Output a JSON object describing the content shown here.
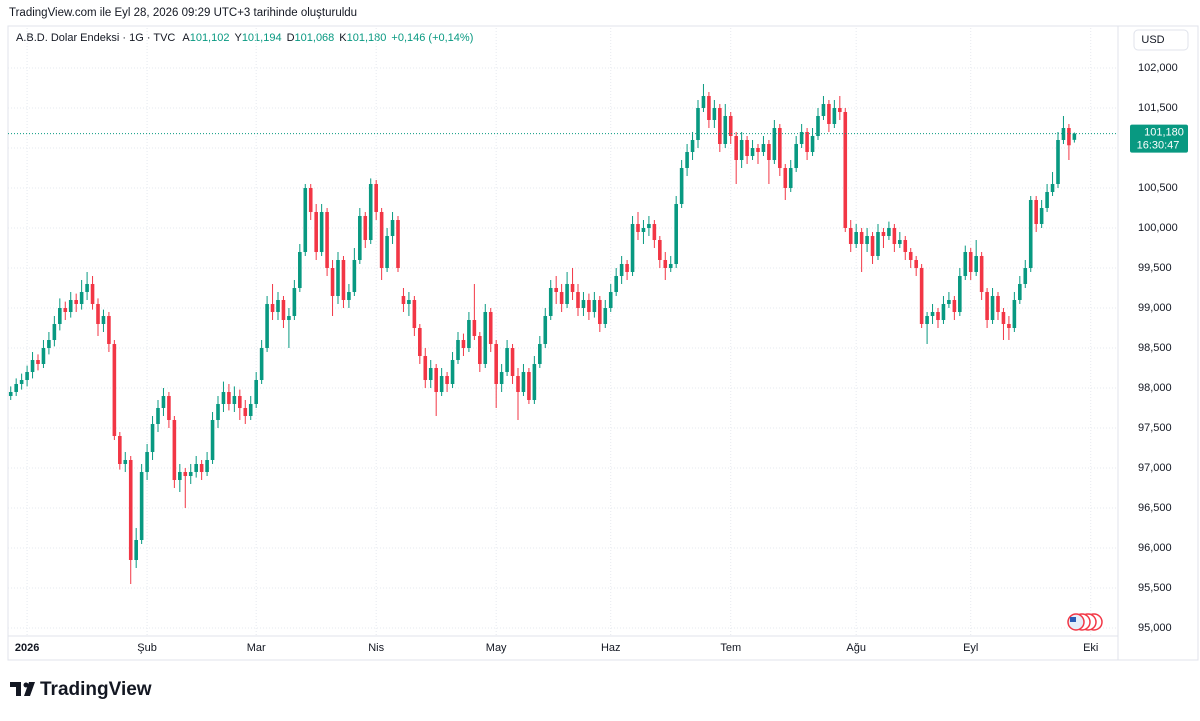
{
  "page": {
    "caption": "TradingView.com ile Eyl 28, 2026 09:29 UTC+3 tarihinde oluşturuldu",
    "logo": "TradingView"
  },
  "chart_data": {
    "type": "candlestick",
    "symbol": "A.B.D. Dolar Endeksi · 1G · TVC",
    "ohlc_labels": [
      {
        "key": "A",
        "value": "101,102"
      },
      {
        "key": "Y",
        "value": "101,194"
      },
      {
        "key": "D",
        "value": "101,068"
      },
      {
        "key": "K",
        "value": "101,180"
      }
    ],
    "change_label": "+0,146 (+0,14%)",
    "currency": "USD",
    "last_label": {
      "price": "101,180",
      "countdown": "16:30:47"
    },
    "up_color": "#089981",
    "down_color": "#f23645",
    "grid": true,
    "xlim": [
      -0.5,
      203
    ],
    "xticks": [
      {
        "value": 3,
        "label": "2026"
      },
      {
        "value": 25,
        "label": "Şub"
      },
      {
        "value": 45,
        "label": "Mar"
      },
      {
        "value": 67,
        "label": "Nis"
      },
      {
        "value": 89,
        "label": "May"
      },
      {
        "value": 110,
        "label": "Haz"
      },
      {
        "value": 132,
        "label": "Tem"
      },
      {
        "value": 155,
        "label": "Ağu"
      },
      {
        "value": 176,
        "label": "Eyl"
      },
      {
        "value": 198,
        "label": "Eki"
      }
    ],
    "ylim": [
      94.6,
      102.5
    ],
    "yticks": [
      {
        "value": 95,
        "label": "95,000"
      },
      {
        "value": 95.5,
        "label": "95,500"
      },
      {
        "value": 96,
        "label": "96,000"
      },
      {
        "value": 96.5,
        "label": "96,500"
      },
      {
        "value": 97,
        "label": "97,000"
      },
      {
        "value": 97.5,
        "label": "97,500"
      },
      {
        "value": 98,
        "label": "98,000"
      },
      {
        "value": 98.5,
        "label": "98,500"
      },
      {
        "value": 99,
        "label": "99,000"
      },
      {
        "value": 99.5,
        "label": "99,500"
      },
      {
        "value": 100,
        "label": "100,000"
      },
      {
        "value": 100.5,
        "label": "100,500"
      },
      {
        "value": 101,
        "label": "101,000"
      },
      {
        "value": 101.5,
        "label": "101,500"
      },
      {
        "value": 102,
        "label": "102,000"
      }
    ],
    "open": [
      97.9,
      97.95,
      98.05,
      98.1,
      98.2,
      98.35,
      98.3,
      98.5,
      98.6,
      98.8,
      99.0,
      98.95,
      99.1,
      99.05,
      99.2,
      99.3,
      99.05,
      98.8,
      98.9,
      98.55,
      97.4,
      97.05,
      97.1,
      95.85,
      96.1,
      96.95,
      97.2,
      97.55,
      97.75,
      97.9,
      97.6,
      96.85,
      96.95,
      96.9,
      96.95,
      97.05,
      96.95,
      97.1,
      97.6,
      97.8,
      97.95,
      97.8,
      97.9,
      97.75,
      97.65,
      97.8,
      98.1,
      98.5,
      99.05,
      98.95,
      99.1,
      98.85,
      98.9,
      99.25,
      99.7,
      100.5,
      100.2,
      99.7,
      100.2,
      99.5,
      99.15,
      99.6,
      99.1,
      99.2,
      99.6,
      100.15,
      99.85,
      100.55,
      100.2,
      99.5,
      99.9,
      100.1,
      99.15,
      99.05,
      99.1,
      98.75,
      98.4,
      98.1,
      98.25,
      97.95,
      98.15,
      98.05,
      98.35,
      98.6,
      98.5,
      98.85,
      98.65,
      98.3,
      98.95,
      98.55,
      98.05,
      98.2,
      98.5,
      98.15,
      97.95,
      98.2,
      97.85,
      98.3,
      98.55,
      98.9,
      99.25,
      99.2,
      99.05,
      99.3,
      99.2,
      99.0,
      99.1,
      98.95,
      99.1,
      98.8,
      99.0,
      99.2,
      99.4,
      99.55,
      99.45,
      100.05,
      99.95,
      100.0,
      100.05,
      99.85,
      99.6,
      99.5,
      99.55,
      100.3,
      100.75,
      100.95,
      101.1,
      101.5,
      101.65,
      101.35,
      101.5,
      101.05,
      101.4,
      101.15,
      100.85,
      101.1,
      100.9,
      101.0,
      100.95,
      101.05,
      100.85,
      101.25,
      100.75,
      100.5,
      100.75,
      101.05,
      101.2,
      100.95,
      101.15,
      101.4,
      101.55,
      101.3,
      101.5,
      101.45,
      100.0,
      99.8,
      99.95,
      99.8,
      99.9,
      99.65,
      99.95,
      99.9,
      100.0,
      99.8,
      99.85,
      99.7,
      99.6,
      99.5,
      98.8,
      98.9,
      98.95,
      98.85,
      99.05,
      99.1,
      98.95,
      99.4,
      99.7,
      99.45,
      99.65,
      99.2,
      98.85,
      99.15,
      98.95,
      98.8,
      98.75,
      99.1,
      99.3,
      99.5,
      100.35,
      100.05,
      100.25,
      100.45,
      100.55,
      101.1,
      101.25,
      101.102
    ],
    "high": [
      98.02,
      98.12,
      98.18,
      98.28,
      98.45,
      98.42,
      98.6,
      98.7,
      98.9,
      99.12,
      99.08,
      99.2,
      99.18,
      99.35,
      99.45,
      99.4,
      99.12,
      98.98,
      98.95,
      98.6,
      97.45,
      97.2,
      97.15,
      96.25,
      97.05,
      97.3,
      97.65,
      97.85,
      98.0,
      97.95,
      97.65,
      97.05,
      97.0,
      97.05,
      97.15,
      97.1,
      97.2,
      97.7,
      97.9,
      98.08,
      98.05,
      98.02,
      97.98,
      97.85,
      97.9,
      98.2,
      98.6,
      99.15,
      99.3,
      99.2,
      99.15,
      99.0,
      99.35,
      99.8,
      100.55,
      100.55,
      100.3,
      100.3,
      100.25,
      99.6,
      99.7,
      99.65,
      99.3,
      99.75,
      100.25,
      100.2,
      100.62,
      100.6,
      100.25,
      100.0,
      100.2,
      100.15,
      99.25,
      99.2,
      99.15,
      98.8,
      98.5,
      98.35,
      98.3,
      98.25,
      98.2,
      98.45,
      98.7,
      98.68,
      98.95,
      99.3,
      98.7,
      99.05,
      99.0,
      98.6,
      98.3,
      98.6,
      98.55,
      98.25,
      98.3,
      98.25,
      98.4,
      98.65,
      99.0,
      99.35,
      99.4,
      99.3,
      99.45,
      99.5,
      99.3,
      99.2,
      99.18,
      99.2,
      99.15,
      99.1,
      99.3,
      99.5,
      99.65,
      99.6,
      100.15,
      100.2,
      100.1,
      100.15,
      100.1,
      99.9,
      99.7,
      99.65,
      100.4,
      100.85,
      101.05,
      101.2,
      101.6,
      101.8,
      101.7,
      101.6,
      101.55,
      101.55,
      101.45,
      101.2,
      101.2,
      101.15,
      101.1,
      101.05,
      101.15,
      101.1,
      101.35,
      101.3,
      100.8,
      100.85,
      101.15,
      101.3,
      101.25,
      101.25,
      101.5,
      101.65,
      101.6,
      101.6,
      101.65,
      101.5,
      100.1,
      100.05,
      100.0,
      100.0,
      99.95,
      100.05,
      100.0,
      100.08,
      100.05,
      99.95,
      99.9,
      99.75,
      99.65,
      99.55,
      98.95,
      99.05,
      99.0,
      99.15,
      99.2,
      99.15,
      99.5,
      99.78,
      99.75,
      99.85,
      99.7,
      99.25,
      99.25,
      99.2,
      99.0,
      98.9,
      99.2,
      99.4,
      99.6,
      100.4,
      100.4,
      100.35,
      100.55,
      100.7,
      101.2,
      101.4,
      101.3,
      101.194
    ],
    "low": [
      97.85,
      97.9,
      97.98,
      98.02,
      98.12,
      98.22,
      98.25,
      98.42,
      98.52,
      98.72,
      98.85,
      98.88,
      98.95,
      98.98,
      99.1,
      98.98,
      98.65,
      98.7,
      98.45,
      97.35,
      96.98,
      96.95,
      95.55,
      95.75,
      96.05,
      96.85,
      97.1,
      97.45,
      97.65,
      97.5,
      96.75,
      96.7,
      96.5,
      96.8,
      96.88,
      96.85,
      96.9,
      97.05,
      97.5,
      97.7,
      97.72,
      97.7,
      97.6,
      97.55,
      97.6,
      97.75,
      98.05,
      98.45,
      98.85,
      98.85,
      98.75,
      98.5,
      98.85,
      99.2,
      99.65,
      100.1,
      99.6,
      99.65,
      99.4,
      98.9,
      99.05,
      99.0,
      99.0,
      99.15,
      99.55,
      99.75,
      99.8,
      100.1,
      99.35,
      99.45,
      99.8,
      99.45,
      98.95,
      98.9,
      98.65,
      98.3,
      98.0,
      98.0,
      97.65,
      97.9,
      97.95,
      98.0,
      98.3,
      98.4,
      98.45,
      98.6,
      98.2,
      98.25,
      98.45,
      97.75,
      97.95,
      98.15,
      98.05,
      97.6,
      97.9,
      97.8,
      97.8,
      98.25,
      98.5,
      98.85,
      99.05,
      98.95,
      99.0,
      99.1,
      98.9,
      98.9,
      98.85,
      98.88,
      98.7,
      98.75,
      98.95,
      99.15,
      99.3,
      99.35,
      99.4,
      99.85,
      99.8,
      99.9,
      99.75,
      99.5,
      99.35,
      99.45,
      99.5,
      100.25,
      100.65,
      100.85,
      101.0,
      101.45,
      101.25,
      101.25,
      100.95,
      101.0,
      101.05,
      100.55,
      100.75,
      100.8,
      100.85,
      100.8,
      100.9,
      100.55,
      100.8,
      100.65,
      100.35,
      100.45,
      100.7,
      101.0,
      100.85,
      100.9,
      101.1,
      101.35,
      101.2,
      101.25,
      101.35,
      99.95,
      99.7,
      99.75,
      99.45,
      99.7,
      99.55,
      99.6,
      99.75,
      99.85,
      99.7,
      99.75,
      99.6,
      99.5,
      99.4,
      98.75,
      98.55,
      98.8,
      98.75,
      98.8,
      99.0,
      98.85,
      98.9,
      99.35,
      99.35,
      99.4,
      99.1,
      98.75,
      98.8,
      98.85,
      98.6,
      98.6,
      98.7,
      99.05,
      99.25,
      99.45,
      99.95,
      100.0,
      100.2,
      100.4,
      100.5,
      101.05,
      100.85,
      101.068
    ],
    "close": [
      97.95,
      98.05,
      98.1,
      98.2,
      98.35,
      98.3,
      98.5,
      98.6,
      98.8,
      99.0,
      98.95,
      99.1,
      99.05,
      99.2,
      99.3,
      99.05,
      98.8,
      98.9,
      98.55,
      97.4,
      97.05,
      97.1,
      95.85,
      96.1,
      96.95,
      97.2,
      97.55,
      97.75,
      97.9,
      97.6,
      96.85,
      96.95,
      96.9,
      96.95,
      97.05,
      96.95,
      97.1,
      97.6,
      97.8,
      97.95,
      97.8,
      97.9,
      97.75,
      97.65,
      97.8,
      98.1,
      98.5,
      99.05,
      98.95,
      99.1,
      98.85,
      98.9,
      99.25,
      99.7,
      100.5,
      100.2,
      99.7,
      100.2,
      99.5,
      99.15,
      99.6,
      99.1,
      99.2,
      99.6,
      100.15,
      99.85,
      100.55,
      100.2,
      99.5,
      99.9,
      100.1,
      99.5,
      99.05,
      99.1,
      98.75,
      98.4,
      98.1,
      98.25,
      97.95,
      98.15,
      98.05,
      98.35,
      98.6,
      98.5,
      98.85,
      98.65,
      98.3,
      98.95,
      98.55,
      98.05,
      98.2,
      98.5,
      98.15,
      97.95,
      98.2,
      97.85,
      98.3,
      98.55,
      98.9,
      99.25,
      99.2,
      99.05,
      99.3,
      99.2,
      99.0,
      99.1,
      98.95,
      99.1,
      98.8,
      99.0,
      99.2,
      99.4,
      99.55,
      99.45,
      100.05,
      99.95,
      100.0,
      100.05,
      99.85,
      99.6,
      99.5,
      99.55,
      100.3,
      100.75,
      100.95,
      101.1,
      101.5,
      101.65,
      101.35,
      101.5,
      101.05,
      101.4,
      101.15,
      100.85,
      101.1,
      100.9,
      101.0,
      100.95,
      101.05,
      100.85,
      101.25,
      100.75,
      100.5,
      100.75,
      101.05,
      101.2,
      100.95,
      101.15,
      101.4,
      101.55,
      101.3,
      101.5,
      101.45,
      100.0,
      99.8,
      99.95,
      99.8,
      99.9,
      99.65,
      99.95,
      99.9,
      100.0,
      99.8,
      99.85,
      99.7,
      99.6,
      99.5,
      98.8,
      98.9,
      98.95,
      98.85,
      99.05,
      99.1,
      98.95,
      99.4,
      99.7,
      99.45,
      99.65,
      99.2,
      98.85,
      99.15,
      98.95,
      98.8,
      98.75,
      99.1,
      99.3,
      99.5,
      100.35,
      100.05,
      100.25,
      100.45,
      100.55,
      101.1,
      101.25,
      101.034,
      101.18
    ]
  }
}
